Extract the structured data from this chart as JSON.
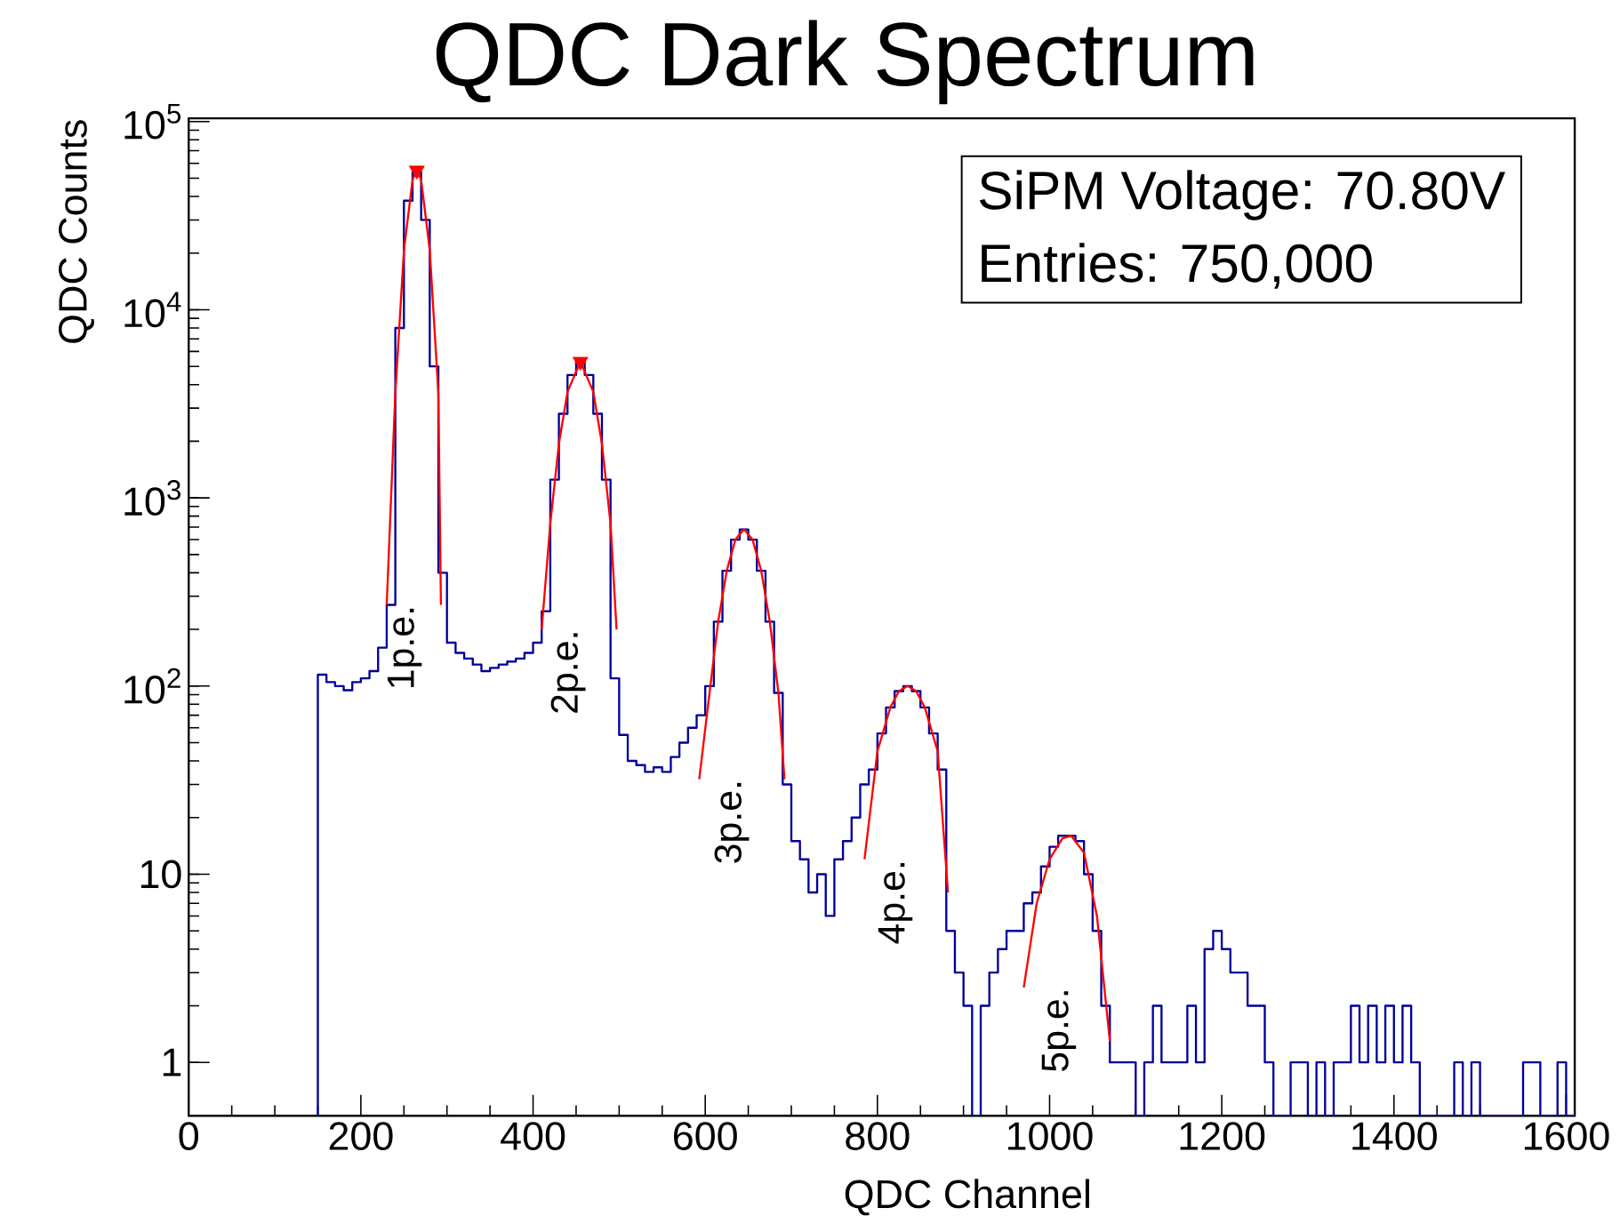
{
  "chart_data": {
    "type": "histogram",
    "title": "QDC Dark Spectrum",
    "xlabel": "QDC Channel",
    "ylabel": "QDC Counts",
    "color": "#000099",
    "log": true,
    "xlim": [
      0,
      1610
    ],
    "ylim": [
      0.52,
      104000
    ],
    "xticks": [
      0,
      200,
      400,
      600,
      800,
      1000,
      1200,
      1400,
      1600
    ],
    "yticks": [
      1,
      10,
      {
        "value": 100,
        "label": "10$^{2}$"
      },
      {
        "value": 1000,
        "label": "10$^{3}$"
      },
      {
        "value": 10000,
        "label": "10$^{4}$"
      },
      {
        "value": 100000,
        "label": "10$^{5}$"
      }
    ],
    "bins": [
      150,
      160,
      170,
      180,
      190,
      200,
      210,
      220,
      230,
      240,
      250,
      260,
      270,
      280,
      290,
      300,
      310,
      320,
      330,
      340,
      350,
      360,
      370,
      380,
      390,
      400,
      410,
      420,
      430,
      440,
      450,
      460,
      470,
      480,
      490,
      500,
      510,
      520,
      530,
      540,
      550,
      560,
      570,
      580,
      590,
      600,
      610,
      620,
      630,
      640,
      650,
      660,
      670,
      680,
      690,
      700,
      710,
      720,
      730,
      740,
      750,
      760,
      770,
      780,
      790,
      800,
      810,
      820,
      830,
      840,
      850,
      860,
      870,
      880,
      890,
      900,
      910,
      920,
      930,
      940,
      950,
      960,
      970,
      980,
      990,
      1000,
      1010,
      1020,
      1030,
      1040,
      1050,
      1060,
      1070,
      1080,
      1090,
      1100,
      1110,
      1120,
      1130,
      1140,
      1150,
      1160,
      1170,
      1180,
      1190,
      1200,
      1210,
      1220,
      1230,
      1240,
      1250,
      1260,
      1270,
      1280,
      1290,
      1300,
      1310,
      1320,
      1330,
      1340,
      1350,
      1360,
      1370,
      1380,
      1390,
      1400,
      1410,
      1420,
      1430,
      1440,
      1450,
      1460,
      1470,
      1480,
      1490,
      1500,
      1510,
      1520,
      1530,
      1540,
      1550,
      1560,
      1570,
      1580,
      1590,
      1600,
      1610
    ],
    "values": [
      115,
      105,
      100,
      95,
      105,
      110,
      120,
      160,
      270,
      8000,
      38000,
      54000,
      30000,
      5000,
      400,
      170,
      150,
      140,
      130,
      120,
      125,
      130,
      135,
      140,
      150,
      170,
      250,
      1250,
      2800,
      4500,
      5300,
      4500,
      2800,
      1250,
      110,
      55,
      40,
      38,
      35,
      37,
      35,
      42,
      50,
      60,
      70,
      100,
      220,
      410,
      600,
      680,
      600,
      410,
      220,
      92,
      30,
      15,
      12,
      8,
      10,
      6,
      12,
      15,
      20,
      30,
      36,
      56,
      77,
      94,
      100,
      94,
      77,
      56,
      36,
      5,
      3,
      2,
      null,
      2,
      3,
      4,
      5,
      5,
      7,
      8,
      11,
      14,
      16,
      16,
      15,
      10,
      5,
      2,
      1,
      1,
      1,
      null,
      1,
      2,
      1,
      1,
      1,
      2,
      1,
      4,
      5,
      4,
      3,
      3,
      2,
      2,
      1,
      null,
      null,
      1,
      1,
      null,
      1,
      null,
      1,
      1,
      2,
      1,
      2,
      1,
      2,
      1,
      2,
      1,
      null,
      null,
      null,
      null,
      1,
      null,
      1,
      null,
      null,
      null,
      null,
      null,
      1,
      1,
      null,
      null,
      1,
      null
    ],
    "series": [
      {
        "type": "line",
        "color": "#ff0000",
        "x": [
          230,
          240,
          250,
          260,
          265,
          270,
          280,
          290,
          293
        ],
        "values": [
          270,
          3600,
          20700,
          49000,
          55000,
          49000,
          20700,
          3600,
          270
        ]
      },
      {
        "type": "line",
        "color": "#ff0000",
        "x": [
          410,
          420,
          430,
          440,
          455,
          470,
          480,
          490,
          497
        ],
        "values": [
          200,
          730,
          1940,
          3660,
          5300,
          3660,
          1940,
          730,
          200
        ]
      },
      {
        "type": "line",
        "color": "#ff0000",
        "x": [
          593,
          605,
          615,
          625,
          635,
          645,
          655,
          665,
          675,
          685,
          692
        ],
        "values": [
          32,
          92,
          220,
          410,
          600,
          680,
          600,
          410,
          220,
          92,
          32
        ]
      },
      {
        "type": "line",
        "color": "#ff0000",
        "x": [
          785,
          800,
          815,
          825,
          835,
          845,
          855,
          870,
          882
        ],
        "values": [
          12,
          45,
          77,
          94,
          100,
          94,
          77,
          45,
          8
        ]
      },
      {
        "type": "line",
        "color": "#ff0000",
        "x": [
          970,
          985,
          1000,
          1015,
          1025,
          1040,
          1055,
          1070
        ],
        "values": [
          2.5,
          7,
          12,
          15.5,
          16,
          13,
          6,
          1.3
        ]
      },
      {
        "type": "scatter",
        "color": "#ff0000",
        "marker": "triangle",
        "x": [
          265,
          455
        ],
        "values": [
          55000,
          5300
        ]
      }
    ],
    "annotations": [
      "1p.e.",
      "2p.e.",
      "3p.e.",
      "4p.e.",
      "5p.e.",
      "SiPM Voltage: 70.80V",
      "Entries: 750,000"
    ]
  }
}
